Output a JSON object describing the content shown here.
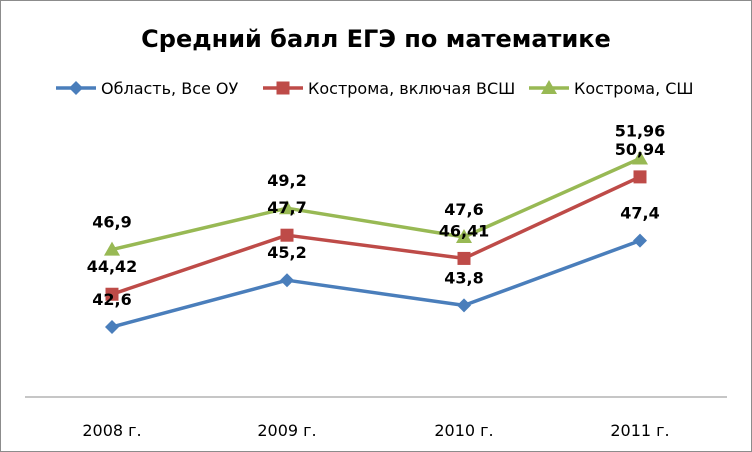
{
  "chart_data": {
    "type": "line",
    "title": "Средний балл ЕГЭ по математике",
    "xlabel": "",
    "ylabel": "",
    "categories": [
      "2008 г.",
      "2009 г.",
      "2010 г.",
      "2011 г."
    ],
    "ylim": [
      0,
      60
    ],
    "grid": false,
    "legend_position": "top",
    "series": [
      {
        "name": "Область, Все ОУ",
        "values": [
          42.6,
          45.2,
          43.8,
          47.4
        ],
        "labels": [
          "42,6",
          "45,2",
          "43,8",
          "47,4"
        ],
        "color": "#4a7ebb",
        "marker": "diamond"
      },
      {
        "name": "Кострома, включая ВСШ",
        "values": [
          44.42,
          47.7,
          46.41,
          50.94
        ],
        "labels": [
          "44,42",
          "47,7",
          "46,41",
          "50,94"
        ],
        "color": "#be4b48",
        "marker": "square"
      },
      {
        "name": "Кострома, СШ",
        "values": [
          46.9,
          49.2,
          47.6,
          51.96
        ],
        "labels": [
          "46,9",
          "49,2",
          "47,6",
          "51,96"
        ],
        "color": "#98b954",
        "marker": "triangle"
      }
    ]
  }
}
